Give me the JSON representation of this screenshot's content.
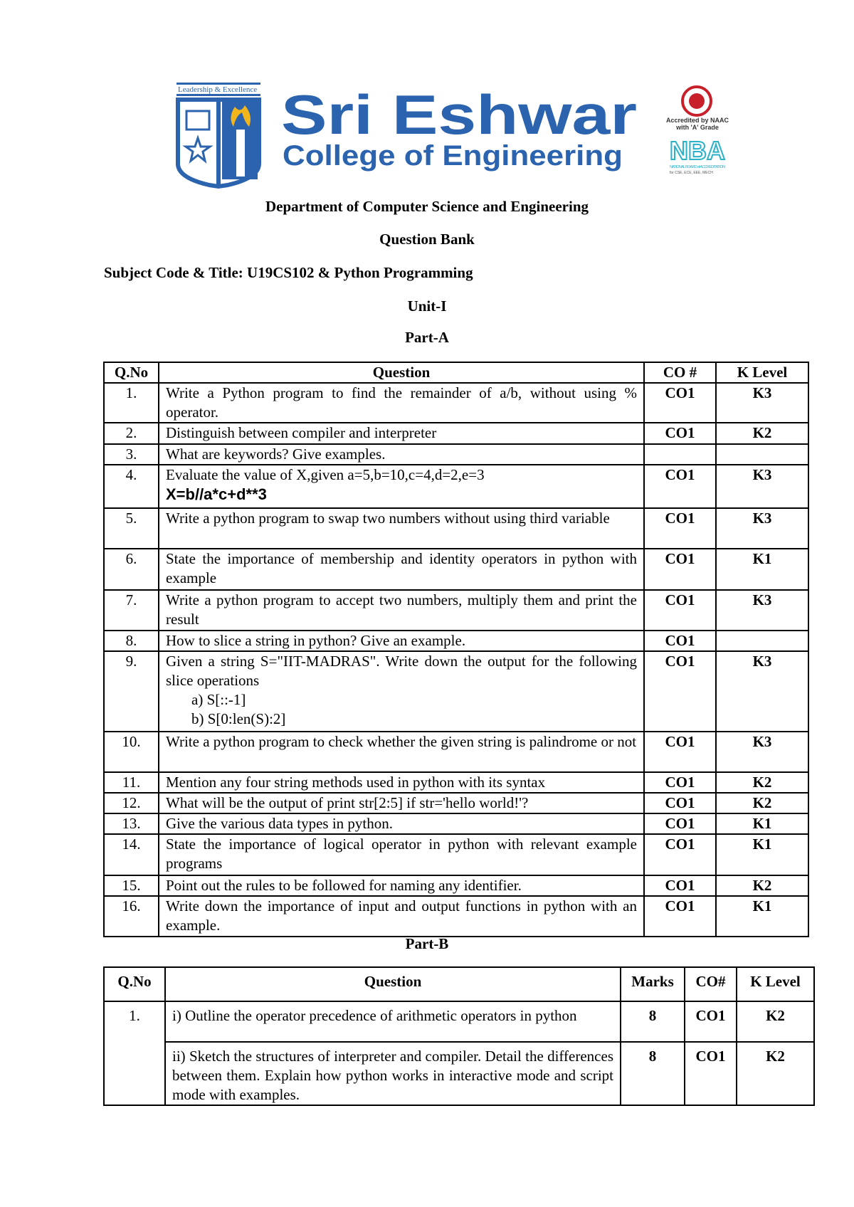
{
  "header": {
    "logo": {
      "tagline": "Leadership & Excellence",
      "name_line1": "Sri Eshwar",
      "name_line2": "College of Engineering",
      "brand_color": "#2b63ae",
      "accent_color": "#f2b51c"
    },
    "naac_badge": {
      "text": "Accredited by NAAC with 'A' Grade",
      "color": "#c8202b"
    },
    "nba_badge": {
      "logo": "NBA",
      "text": "NATIONAL BOARD of ACCREDITATION",
      "subtext": "for CSE, ECE, EEE, MECH",
      "color": "#2bb2c9"
    }
  },
  "department": "Department of Computer Science and Engineering",
  "doc_title": "Question Bank",
  "subject": "Subject Code & Title: U19CS102 & Python Programming",
  "unit": "Unit-I",
  "part_a": {
    "title": "Part-A",
    "columns": [
      "Q.No",
      "Question",
      "CO #",
      "K Level"
    ],
    "rows": [
      {
        "no": "1.",
        "question": "Write a Python program to find the remainder of a/b, without using % operator.",
        "co": "CO1",
        "k": "K3"
      },
      {
        "no": "2.",
        "question": "Distinguish between compiler and interpreter",
        "co": "CO1",
        "k": "K2"
      },
      {
        "no": "3.",
        "question": "What are keywords? Give examples.",
        "co": "",
        "k": ""
      },
      {
        "no": "4.",
        "question": "Evaluate the value of X,given a=5,b=10,c=4,d=2,e=3",
        "formula": "X=b//a*c+d**3",
        "co": "CO1",
        "k": "K3"
      },
      {
        "no": "5.",
        "question": "Write a python program to swap two numbers without using third variable",
        "co": "CO1",
        "k": "K3"
      },
      {
        "no": "6.",
        "question": "State the importance of membership and identity operators in python with example",
        "co": "CO1",
        "k": "K1"
      },
      {
        "no": "7.",
        "question": "Write a python program to accept two numbers, multiply them and print the result",
        "co": "CO1",
        "k": "K3"
      },
      {
        "no": "8.",
        "question": "How to slice a string in python? Give an example.",
        "co": "CO1",
        "k": ""
      },
      {
        "no": "9.",
        "question": "Given a string S=\"IIT-MADRAS\". Write down the output for the following slice operations",
        "sub": [
          "a)  S[::-1]",
          "b)  S[0:len(S):2]"
        ],
        "co": "CO1",
        "k": "K3"
      },
      {
        "no": "10.",
        "question": "Write a python program to check whether the given string is palindrome or not",
        "co": "CO1",
        "k": "K3"
      },
      {
        "no": "11.",
        "question": "Mention any four string methods used in python with its syntax",
        "co": "CO1",
        "k": "K2"
      },
      {
        "no": "12.",
        "question": "What will be the output of print str[2:5] if str='hello world!'?",
        "co": "CO1",
        "k": "K2"
      },
      {
        "no": "13.",
        "question": "Give the various data types in python.",
        "co": "CO1",
        "k": "K1"
      },
      {
        "no": "14.",
        "question": "State the importance of logical operator in python with relevant example programs",
        "co": "CO1",
        "k": "K1"
      },
      {
        "no": "15.",
        "question": "Point out the rules to be followed for naming any identifier.",
        "co": "CO1",
        "k": "K2"
      },
      {
        "no": "16.",
        "question": "Write down the importance of input and output functions in python with an example.",
        "co": "CO1",
        "k": "K1"
      }
    ]
  },
  "part_b": {
    "title": "Part-B",
    "columns": [
      "Q.No",
      "Question",
      "Marks",
      "CO#",
      "K Level"
    ],
    "rows": [
      {
        "no": "1.",
        "items": [
          {
            "question": "i) Outline the operator precedence of arithmetic operators in python",
            "marks": "8",
            "co": "CO1",
            "k": "K2"
          },
          {
            "question": "ii) Sketch the structures of interpreter and compiler. Detail the differences between them. Explain how python works in interactive mode and script mode with examples.",
            "marks": "8",
            "co": "CO1",
            "k": "K2"
          }
        ]
      }
    ]
  }
}
